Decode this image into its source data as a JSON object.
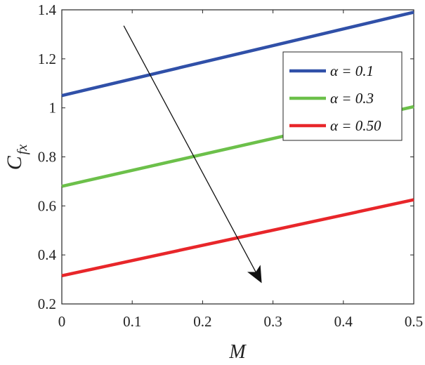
{
  "chart_data": {
    "type": "line",
    "xlabel": "M",
    "ylabel_main": "C",
    "ylabel_sub": "fx",
    "xlim": [
      0,
      0.5
    ],
    "ylim": [
      0.2,
      1.4
    ],
    "x_ticks": [
      "0",
      "0.1",
      "0.2",
      "0.3",
      "0.4",
      "0.5"
    ],
    "y_ticks": [
      "0.2",
      "0.4",
      "0.6",
      "0.8",
      "1",
      "1.2",
      "1.4"
    ],
    "grid": false,
    "legend_position": "top-right",
    "series": [
      {
        "name": "α = 0.1",
        "color": "#3050a8",
        "x": [
          0,
          0.5
        ],
        "y": [
          1.05,
          1.39
        ]
      },
      {
        "name": "α = 0.3",
        "color": "#6cc04a",
        "x": [
          0,
          0.5
        ],
        "y": [
          0.68,
          1.005
        ]
      },
      {
        "name": "α = 0.50",
        "color": "#e8262a",
        "x": [
          0,
          0.5
        ],
        "y": [
          0.315,
          0.625
        ]
      }
    ],
    "annotation": {
      "type": "arrow",
      "from": [
        0.088,
        1.335
      ],
      "to": [
        0.284,
        0.285
      ]
    }
  }
}
